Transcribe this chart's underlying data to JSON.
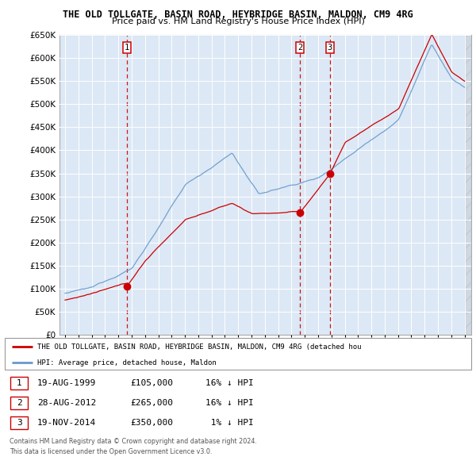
{
  "title": "THE OLD TOLLGATE, BASIN ROAD, HEYBRIDGE BASIN, MALDON, CM9 4RG",
  "subtitle": "Price paid vs. HM Land Registry's House Price Index (HPI)",
  "sale_year_nums": [
    1999.635,
    2012.647,
    2014.884
  ],
  "sale_prices": [
    105000,
    265000,
    350000
  ],
  "sale_labels": [
    "1",
    "2",
    "3"
  ],
  "property_color": "#cc0000",
  "hpi_color": "#6699cc",
  "chart_bg": "#dce8f5",
  "grid_color": "#ffffff",
  "ylim": [
    0,
    650000
  ],
  "xlim_left": 1994.58,
  "xlim_right": 2025.5,
  "legend_property": "THE OLD TOLLGATE, BASIN ROAD, HEYBRIDGE BASIN, MALDON, CM9 4RG (detached hou",
  "legend_hpi": "HPI: Average price, detached house, Maldon",
  "row_data": [
    [
      "1",
      "19-AUG-1999",
      "£105,000",
      "16% ↓ HPI"
    ],
    [
      "2",
      "28-AUG-2012",
      "£265,000",
      "16% ↓ HPI"
    ],
    [
      "3",
      "19-NOV-2014",
      "£350,000",
      " 1% ↓ HPI"
    ]
  ],
  "footer1": "Contains HM Land Registry data © Crown copyright and database right 2024.",
  "footer2": "This data is licensed under the Open Government Licence v3.0."
}
